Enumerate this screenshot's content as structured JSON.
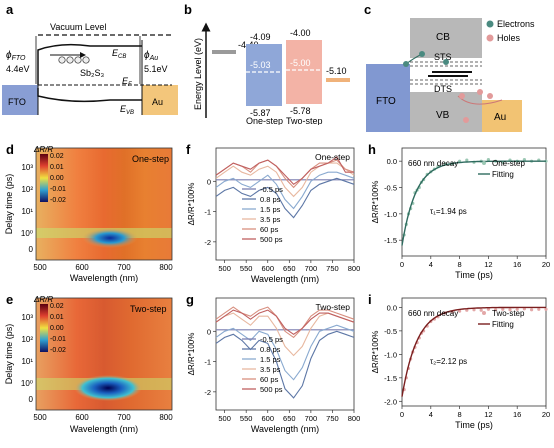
{
  "panels": {
    "a": {
      "letter": "a",
      "vacuum": "Vacuum Level",
      "phi_fto_sym": "ϕ",
      "phi_fto_sub": "FTO",
      "phi_fto_val": "4.4eV",
      "phi_au_sym": "ϕ",
      "phi_au_sub": "Au",
      "phi_au_val": "5.1eV",
      "ecb": "E",
      "ecb_sub": "CB",
      "ef": "E",
      "ef_sub": "F",
      "evb": "E",
      "evb_sub": "VB",
      "material": "Sb₂S₃",
      "fto": "FTO",
      "au": "Au"
    },
    "b": {
      "letter": "b",
      "ylabel": "Energy Level  (eV)",
      "levels": {
        "left": "-4.40",
        "one_top": "-4.09",
        "one_mid": "-5.03",
        "one_bot": "-5.87",
        "two_top": "-4.00",
        "two_mid": "-5.00",
        "two_bot": "-5.78",
        "right": "-5.10"
      },
      "one_label": "One-step",
      "two_label": "Two-step"
    },
    "c": {
      "letter": "c",
      "cb": "CB",
      "vb": "VB",
      "sts": "STS",
      "dts": "DTS",
      "fto": "FTO",
      "au": "Au",
      "legend_electrons": "Electrons",
      "legend_holes": "Holes"
    },
    "d": {
      "letter": "d",
      "title": "One-step",
      "cb_title": "ΔR/R",
      "cb_ticks": [
        "0.02",
        "0.01",
        "0.00",
        "-0.01",
        "-0.02"
      ],
      "ylabel": "Delay time (ps)",
      "xlabel": "Wavelength (nm)",
      "xticks": [
        "500",
        "600",
        "700",
        "800"
      ],
      "yticks": [
        "10³",
        "10²",
        "10¹",
        "10⁰",
        "0"
      ]
    },
    "e": {
      "letter": "e",
      "title": "Two-step",
      "cb_title": "ΔR/R",
      "cb_ticks": [
        "0.02",
        "0.01",
        "0.00",
        "-0.01",
        "-0.02"
      ],
      "ylabel": "Delay time (ps)",
      "xlabel": "Wavelength (nm)",
      "xticks": [
        "500",
        "600",
        "700",
        "800"
      ],
      "yticks": [
        "10³",
        "10²",
        "10¹",
        "10⁰",
        "0"
      ]
    },
    "f": {
      "letter": "f",
      "title": "One-step",
      "ylabel": "ΔR/R*100%",
      "xlabel": "Wavelength (nm)",
      "xticks": [
        "500",
        "550",
        "600",
        "650",
        "700",
        "750",
        "800"
      ],
      "yticks": [
        "0",
        "-1",
        "-2"
      ],
      "legend": [
        "-0.5 ps",
        "0.8 ps",
        "1.5 ps",
        "3.5 ps",
        "60 ps",
        "500 ps"
      ]
    },
    "g": {
      "letter": "g",
      "title": "Two-step",
      "ylabel": "ΔR/R*100%",
      "xlabel": "Wavelength (nm)",
      "xticks": [
        "500",
        "550",
        "600",
        "650",
        "700",
        "750",
        "800"
      ],
      "yticks": [
        "0",
        "-1",
        "-2"
      ],
      "legend": [
        "-0.5 ps",
        "0.8 ps",
        "1.5 ps",
        "3.5 ps",
        "60 ps",
        "500 ps"
      ]
    },
    "h": {
      "letter": "h",
      "note": "660 nm decay",
      "legend_data": "One-step",
      "legend_fit": "Fitting",
      "tau": "τ₁=1.94 ps",
      "ylabel": "ΔR/R*100%",
      "xlabel": "Time (ps)",
      "xticks": [
        "0",
        "4",
        "8",
        "12",
        "16",
        "20"
      ],
      "yticks": [
        "0.0",
        "-0.5",
        "-1.0",
        "-1.5"
      ]
    },
    "i": {
      "letter": "i",
      "note": "660 nm decay",
      "legend_data": "Two-step",
      "legend_fit": "Fitting",
      "tau": "τ₂=2.12 ps",
      "ylabel": "ΔR/R*100%",
      "xlabel": "Time (ps)",
      "xticks": [
        "0",
        "4",
        "8",
        "12",
        "16",
        "20"
      ],
      "yticks": [
        "0.0",
        "-0.5",
        "-1.0",
        "-1.5",
        "-2.0"
      ]
    }
  },
  "colors": {
    "fto": "#6b86c9",
    "au": "#f0b85a",
    "one_step_bar": "#8fa7d8",
    "two_step_bar": "#f3b3a6",
    "left_bar": "#9a9a9a",
    "right_bar": "#f0b27a",
    "fit_one": "#2f6b5f",
    "fit_two": "#7a1f1f",
    "data_one": "#9cc8b4",
    "data_two": "#e3a8a8"
  },
  "chart_data": [
    {
      "type": "line",
      "panel": "f",
      "title": "One-step",
      "xlabel": "Wavelength (nm)",
      "ylabel": "ΔR/R*100%",
      "xlim": [
        480,
        800
      ],
      "ylim": [
        -2.6,
        1.1
      ],
      "x": [
        480,
        500,
        520,
        540,
        560,
        580,
        600,
        620,
        640,
        660,
        680,
        700,
        720,
        740,
        760,
        780,
        800
      ],
      "series": [
        {
          "name": "-0.5 ps",
          "values": [
            0.05,
            0.05,
            0.05,
            0.05,
            0.05,
            0.05,
            0.05,
            0.05,
            0.05,
            0.05,
            0.05,
            0.05,
            0.05,
            0.05,
            0.05,
            0.05,
            0.05
          ]
        },
        {
          "name": "0.8 ps",
          "values": [
            -0.5,
            -0.3,
            -0.2,
            -0.4,
            -0.5,
            -0.3,
            -0.2,
            -0.4,
            -0.9,
            -1.2,
            -0.8,
            -0.3,
            -0.1,
            0.0,
            0.1,
            0.0,
            -0.1
          ]
        },
        {
          "name": "1.5 ps",
          "values": [
            -0.2,
            0.0,
            0.1,
            -0.1,
            -0.2,
            0.0,
            0.2,
            -0.1,
            -0.6,
            -0.9,
            -0.5,
            0.0,
            0.2,
            0.3,
            0.3,
            0.2,
            0.1
          ]
        },
        {
          "name": "3.5 ps",
          "values": [
            0.1,
            0.3,
            0.5,
            0.3,
            0.2,
            0.4,
            0.5,
            0.3,
            -0.2,
            -0.5,
            -0.2,
            0.3,
            0.5,
            0.6,
            0.6,
            0.4,
            0.2
          ]
        },
        {
          "name": "60 ps",
          "values": [
            0.2,
            0.4,
            0.6,
            0.5,
            0.3,
            0.6,
            0.7,
            0.5,
            0.1,
            -0.2,
            0.1,
            0.4,
            0.6,
            0.6,
            0.7,
            0.4,
            0.3
          ]
        },
        {
          "name": "500 ps",
          "values": [
            0.2,
            0.4,
            0.6,
            0.5,
            0.4,
            0.6,
            0.7,
            0.5,
            0.2,
            -0.1,
            0.1,
            0.4,
            0.5,
            0.6,
            0.8,
            0.3,
            0.3
          ]
        }
      ]
    },
    {
      "type": "line",
      "panel": "g",
      "title": "Two-step",
      "xlabel": "Wavelength (nm)",
      "ylabel": "ΔR/R*100%",
      "xlim": [
        480,
        800
      ],
      "ylim": [
        -2.6,
        1.1
      ],
      "x": [
        480,
        500,
        520,
        540,
        560,
        580,
        600,
        620,
        640,
        660,
        680,
        700,
        720,
        740,
        760,
        780,
        800
      ],
      "series": [
        {
          "name": "-0.5 ps",
          "values": [
            0.05,
            0.05,
            0.05,
            0.05,
            0.05,
            0.05,
            0.05,
            0.05,
            0.05,
            0.05,
            0.05,
            0.05,
            0.05,
            0.05,
            0.05,
            0.05,
            0.05
          ]
        },
        {
          "name": "0.8 ps",
          "values": [
            -0.4,
            -0.2,
            -0.1,
            -0.3,
            -0.6,
            -0.3,
            -0.4,
            -1.0,
            -1.9,
            -2.2,
            -1.8,
            -0.9,
            -0.3,
            -0.1,
            0.0,
            -0.1,
            -0.2
          ]
        },
        {
          "name": "1.5 ps",
          "values": [
            -0.2,
            0.0,
            0.1,
            -0.1,
            -0.3,
            0.0,
            -0.1,
            -0.6,
            -1.3,
            -1.6,
            -1.2,
            -0.5,
            0.0,
            0.1,
            0.2,
            0.1,
            0.0
          ]
        },
        {
          "name": "3.5 ps",
          "values": [
            0.3,
            0.5,
            0.6,
            0.4,
            0.2,
            0.5,
            0.5,
            0.1,
            -0.5,
            -0.8,
            -0.5,
            0.1,
            0.5,
            0.6,
            0.5,
            0.4,
            0.3
          ]
        },
        {
          "name": "60 ps",
          "values": [
            0.4,
            0.6,
            0.8,
            0.6,
            0.5,
            0.7,
            0.8,
            0.5,
            0.0,
            -0.2,
            0.1,
            0.5,
            0.7,
            0.7,
            0.6,
            0.5,
            0.4
          ]
        },
        {
          "name": "500 ps",
          "values": [
            0.3,
            0.5,
            0.7,
            0.6,
            0.4,
            0.6,
            0.7,
            0.5,
            0.1,
            -0.1,
            0.1,
            0.4,
            0.6,
            0.6,
            0.5,
            0.4,
            0.3
          ]
        }
      ]
    },
    {
      "type": "scatter",
      "panel": "h",
      "xlabel": "Time (ps)",
      "ylabel": "ΔR/R*100%",
      "xlim": [
        0,
        20
      ],
      "ylim": [
        -1.8,
        0.25
      ],
      "tau": 1.94,
      "amplitude": -1.6,
      "series": [
        {
          "name": "One-step",
          "x": [
            0.3,
            0.6,
            0.9,
            1.2,
            1.5,
            1.8,
            2.1,
            2.4,
            2.7,
            3.0,
            3.5,
            4.0,
            4.5,
            5.0,
            6.0,
            7.0,
            8.0,
            9.0,
            10.0,
            11.0,
            12.0,
            13.0,
            14.0,
            15.0,
            16.0,
            17.0,
            18.0,
            19.0,
            20.0
          ],
          "values": [
            -1.4,
            -1.2,
            -1.0,
            -0.9,
            -0.8,
            -0.6,
            -0.55,
            -0.5,
            -0.4,
            -0.35,
            -0.25,
            -0.2,
            -0.15,
            -0.1,
            -0.05,
            -0.05,
            0.0,
            0.02,
            -0.02,
            0.0,
            0.03,
            0.0,
            -0.02,
            0.02,
            0.0,
            0.03,
            0.0,
            0.02,
            0.0
          ]
        }
      ]
    },
    {
      "type": "scatter",
      "panel": "i",
      "xlabel": "Time (ps)",
      "ylabel": "ΔR/R*100%",
      "xlim": [
        0,
        20
      ],
      "ylim": [
        -2.1,
        0.2
      ],
      "tau": 2.12,
      "amplitude": -1.9,
      "series": [
        {
          "name": "Two-step",
          "x": [
            0.3,
            0.6,
            0.9,
            1.2,
            1.5,
            1.8,
            2.1,
            2.4,
            2.7,
            3.0,
            3.5,
            4.0,
            4.5,
            5.0,
            6.0,
            7.0,
            8.0,
            9.0,
            10.0,
            11.0,
            12.0,
            13.0,
            14.0,
            15.0,
            16.0,
            17.0,
            18.0,
            19.0,
            20.0
          ],
          "values": [
            -1.75,
            -1.5,
            -1.3,
            -1.1,
            -0.95,
            -0.85,
            -0.75,
            -0.65,
            -0.55,
            -0.5,
            -0.4,
            -0.3,
            -0.25,
            -0.2,
            -0.12,
            -0.1,
            -0.08,
            -0.06,
            -0.05,
            -0.06,
            -0.04,
            -0.05,
            -0.04,
            -0.05,
            -0.04,
            -0.03,
            -0.05,
            -0.04,
            -0.04
          ]
        }
      ]
    }
  ]
}
